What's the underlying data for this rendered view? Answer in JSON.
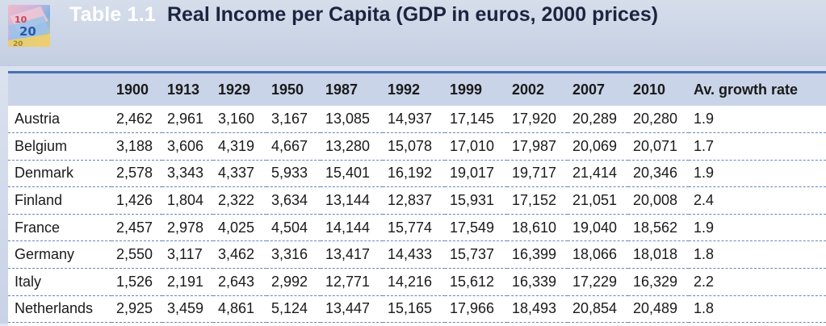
{
  "header": {
    "table_number": "Table 1.1",
    "title": "Real Income per Capita (GDP in euros, 2000 prices)",
    "logo_icon": "euro-banknote-icon"
  },
  "table": {
    "columns": [
      "",
      "1900",
      "1913",
      "1929",
      "1950",
      "1987",
      "1992",
      "1999",
      "2002",
      "2007",
      "2010",
      "Av. growth rate"
    ],
    "rows": [
      {
        "country": "Austria",
        "values": [
          "2,462",
          "2,961",
          "3,160",
          "3,167",
          "13,085",
          "14,937",
          "17,145",
          "17,920",
          "20,289",
          "20,280",
          "1.9"
        ]
      },
      {
        "country": "Belgium",
        "values": [
          "3,188",
          "3,606",
          "4,319",
          "4,667",
          "13,280",
          "15,078",
          "17,010",
          "17,987",
          "20,069",
          "20,071",
          "1.7"
        ]
      },
      {
        "country": "Denmark",
        "values": [
          "2,578",
          "3,343",
          "4,337",
          "5,933",
          "15,401",
          "16,192",
          "19,017",
          "19,717",
          "21,414",
          "20,346",
          "1.9"
        ]
      },
      {
        "country": "Finland",
        "values": [
          "1,426",
          "1,804",
          "2,322",
          "3,634",
          "13,144",
          "12,837",
          "15,931",
          "17,152",
          "21,051",
          "20,008",
          "2.4"
        ]
      },
      {
        "country": "France",
        "values": [
          "2,457",
          "2,978",
          "4,025",
          "4,504",
          "14,144",
          "15,774",
          "17,549",
          "18,610",
          "19,040",
          "18,562",
          "1.9"
        ]
      },
      {
        "country": "Germany",
        "values": [
          "2,550",
          "3,117",
          "3,462",
          "3,316",
          "13,417",
          "14,433",
          "15,737",
          "16,399",
          "18,066",
          "18,018",
          "1.8"
        ]
      },
      {
        "country": "Italy",
        "values": [
          "1,526",
          "2,191",
          "2,643",
          "2,992",
          "12,771",
          "14,216",
          "15,612",
          "16,339",
          "17,229",
          "16,329",
          "2.2"
        ]
      },
      {
        "country": "Netherlands",
        "values": [
          "2,925",
          "3,459",
          "4,861",
          "5,124",
          "13,447",
          "15,165",
          "17,966",
          "18,493",
          "20,854",
          "20,489",
          "1.8"
        ]
      }
    ]
  },
  "colors": {
    "header_band": "#c9d4e8",
    "accent_rule": "#4a6fb0",
    "title_text": "#1b2540"
  }
}
